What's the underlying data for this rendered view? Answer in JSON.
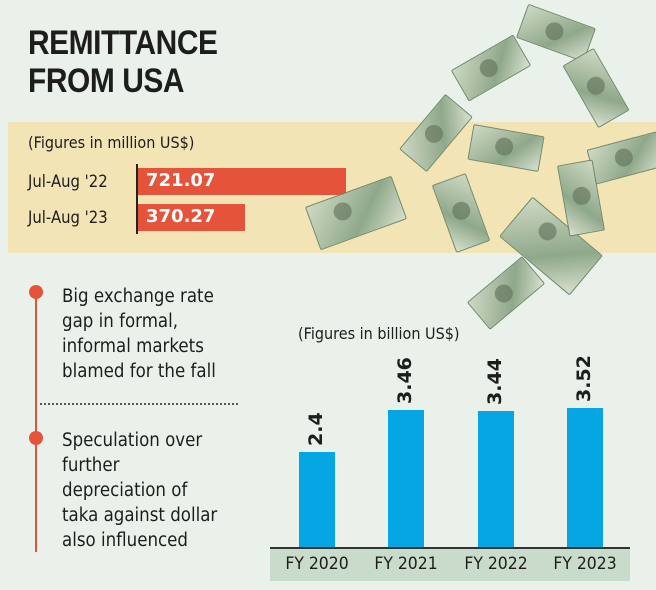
{
  "title_line1": "REMITTANCE",
  "title_line2": "FROM USA",
  "chart_data": [
    {
      "type": "bar",
      "orientation": "horizontal",
      "note": "(Figures in million US$)",
      "categories": [
        "Jul-Aug '22",
        "Jul-Aug '23"
      ],
      "values": [
        721.07,
        370.27
      ],
      "labels": [
        "721.07",
        "370.27"
      ],
      "color": "#e5533b"
    },
    {
      "type": "bar",
      "note": "(Figures in billion US$)",
      "categories": [
        "FY 2020",
        "FY 2021",
        "FY 2022",
        "FY 2023"
      ],
      "values": [
        2.4,
        3.46,
        3.44,
        3.52
      ],
      "labels": [
        "2.4",
        "3.46",
        "3.44",
        "3.52"
      ],
      "color": "#06a6e5"
    }
  ],
  "bullets": [
    [
      "Big exchange rate",
      "gap in formal,",
      "informal markets",
      "blamed for the fall"
    ],
    [
      "Speculation over",
      "further",
      "depreciation of",
      "taka against dollar",
      "also influenced"
    ]
  ]
}
